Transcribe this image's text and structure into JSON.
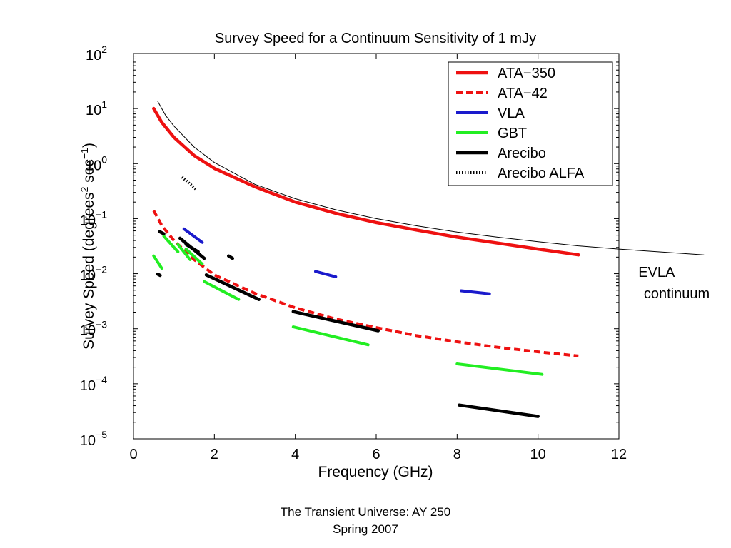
{
  "chart_data": {
    "type": "line",
    "title": "Survey Speed for a Continuum Sensitivity of 1 mJy",
    "xlabel": "Frequency (GHz)",
    "ylabel": "Survey Speed (degrees² sec⁻¹)",
    "ylabel_parts": {
      "a": "Survey Speed (degrees",
      "sup1": "2",
      "b": " sec",
      "sup2": "−1",
      "c": ")"
    },
    "xlim": [
      0,
      12
    ],
    "ylim": [
      1e-05,
      100
    ],
    "yscale": "log",
    "grid": false,
    "legend_position": "top-right",
    "xticks": [
      0,
      2,
      4,
      6,
      8,
      10,
      12
    ],
    "yticks": [
      {
        "value": 1e-05,
        "base": "10",
        "exp": "−5"
      },
      {
        "value": 0.0001,
        "base": "10",
        "exp": "−4"
      },
      {
        "value": 0.001,
        "base": "10",
        "exp": "−3"
      },
      {
        "value": 0.01,
        "base": "10",
        "exp": "−2"
      },
      {
        "value": 0.1,
        "base": "10",
        "exp": "−1"
      },
      {
        "value": 1,
        "base": "10",
        "exp": "0"
      },
      {
        "value": 10,
        "base": "10",
        "exp": "1"
      },
      {
        "value": 100,
        "base": "10",
        "exp": "2"
      }
    ],
    "series": [
      {
        "name": "ATA−350",
        "color": "#ee1111",
        "style": "solid",
        "width": 4.5,
        "legend": true,
        "segments": [
          [
            [
              0.5,
              10
            ],
            [
              0.7,
              5.6
            ],
            [
              1,
              3
            ],
            [
              1.5,
              1.4
            ],
            [
              2,
              0.82
            ],
            [
              3,
              0.38
            ],
            [
              4,
              0.2
            ],
            [
              5,
              0.125
            ],
            [
              6,
              0.085
            ],
            [
              7,
              0.062
            ],
            [
              8,
              0.046
            ],
            [
              9,
              0.036
            ],
            [
              10,
              0.028
            ],
            [
              11,
              0.022
            ]
          ]
        ]
      },
      {
        "name": "ATA−42",
        "color": "#ee1111",
        "style": "dashed",
        "width": 4,
        "legend": true,
        "segments": [
          [
            [
              0.5,
              0.14
            ],
            [
              0.7,
              0.075
            ],
            [
              1,
              0.04
            ],
            [
              1.5,
              0.018
            ],
            [
              2,
              0.0095
            ],
            [
              3,
              0.0044
            ],
            [
              4,
              0.0024
            ],
            [
              5,
              0.0015
            ],
            [
              6,
              0.00105
            ],
            [
              7,
              0.00075
            ],
            [
              8,
              0.00058
            ],
            [
              9,
              0.00046
            ],
            [
              10,
              0.00038
            ],
            [
              11,
              0.00032
            ]
          ]
        ]
      },
      {
        "name": "VLA",
        "color": "#1a1acc",
        "style": "solid",
        "width": 4,
        "legend": true,
        "segments": [
          [
            [
              1.25,
              0.065
            ],
            [
              1.7,
              0.037
            ]
          ],
          [
            [
              4.5,
              0.011
            ],
            [
              5,
              0.0088
            ]
          ],
          [
            [
              8.1,
              0.0049
            ],
            [
              8.8,
              0.0043
            ]
          ]
        ]
      },
      {
        "name": "GBT",
        "color": "#22ee22",
        "style": "solid",
        "width": 4,
        "legend": true,
        "segments": [
          [
            [
              0.5,
              0.021
            ],
            [
              0.7,
              0.0125
            ]
          ],
          [
            [
              0.75,
              0.048
            ],
            [
              1.1,
              0.025
            ]
          ],
          [
            [
              1.1,
              0.034
            ],
            [
              1.4,
              0.018
            ]
          ],
          [
            [
              1.3,
              0.028
            ],
            [
              1.7,
              0.015
            ]
          ],
          [
            [
              1.75,
              0.0072
            ],
            [
              2.6,
              0.0034
            ]
          ],
          [
            [
              3.95,
              0.00108
            ],
            [
              5.8,
              0.00051
            ]
          ],
          [
            [
              8,
              0.00023
            ],
            [
              10.1,
              0.000148
            ]
          ]
        ]
      },
      {
        "name": "Arecibo",
        "color": "#000000",
        "style": "solid",
        "width": 4.5,
        "legend": true,
        "segments": [
          [
            [
              0.65,
              0.058
            ],
            [
              0.75,
              0.053
            ]
          ],
          [
            [
              0.6,
              0.0098
            ],
            [
              0.66,
              0.0093
            ]
          ],
          [
            [
              1.15,
              0.044
            ],
            [
              1.75,
              0.019
            ]
          ],
          [
            [
              1.3,
              0.034
            ],
            [
              1.6,
              0.025
            ]
          ],
          [
            [
              2.35,
              0.021
            ],
            [
              2.45,
              0.019
            ]
          ],
          [
            [
              1.8,
              0.0095
            ],
            [
              3.1,
              0.0034
            ]
          ],
          [
            [
              3.95,
              0.00205
            ],
            [
              6.05,
              0.00092
            ]
          ],
          [
            [
              8.05,
              4.1e-05
            ],
            [
              10,
              2.55e-05
            ]
          ]
        ]
      },
      {
        "name": "Arecibo ALFA",
        "color": "#000000",
        "style": "dotted",
        "width": 4,
        "legend": true,
        "segments": [
          [
            [
              1.2,
              0.57
            ],
            [
              1.55,
              0.34
            ]
          ]
        ]
      },
      {
        "name": "EVLA continuum",
        "color": "#000000",
        "style": "solid",
        "width": 1,
        "legend": false,
        "segments": [
          [
            [
              0.6,
              13.5
            ],
            [
              0.8,
              7.4
            ],
            [
              1,
              4.8
            ],
            [
              1.5,
              2
            ],
            [
              2,
              1.05
            ],
            [
              3,
              0.42
            ],
            [
              4,
              0.23
            ],
            [
              5,
              0.145
            ],
            [
              6,
              0.1
            ],
            [
              7,
              0.074
            ],
            [
              8,
              0.057
            ],
            [
              9,
              0.046
            ],
            [
              10,
              0.038
            ],
            [
              11,
              0.032
            ],
            [
              12,
              0.028
            ],
            [
              14.1,
              0.022
            ]
          ]
        ]
      }
    ],
    "annotation": {
      "line1": "EVLA",
      "line2": "continuum"
    }
  },
  "footer": {
    "line1": "The Transient Universe:  AY 250",
    "line2": "Spring 2007"
  }
}
